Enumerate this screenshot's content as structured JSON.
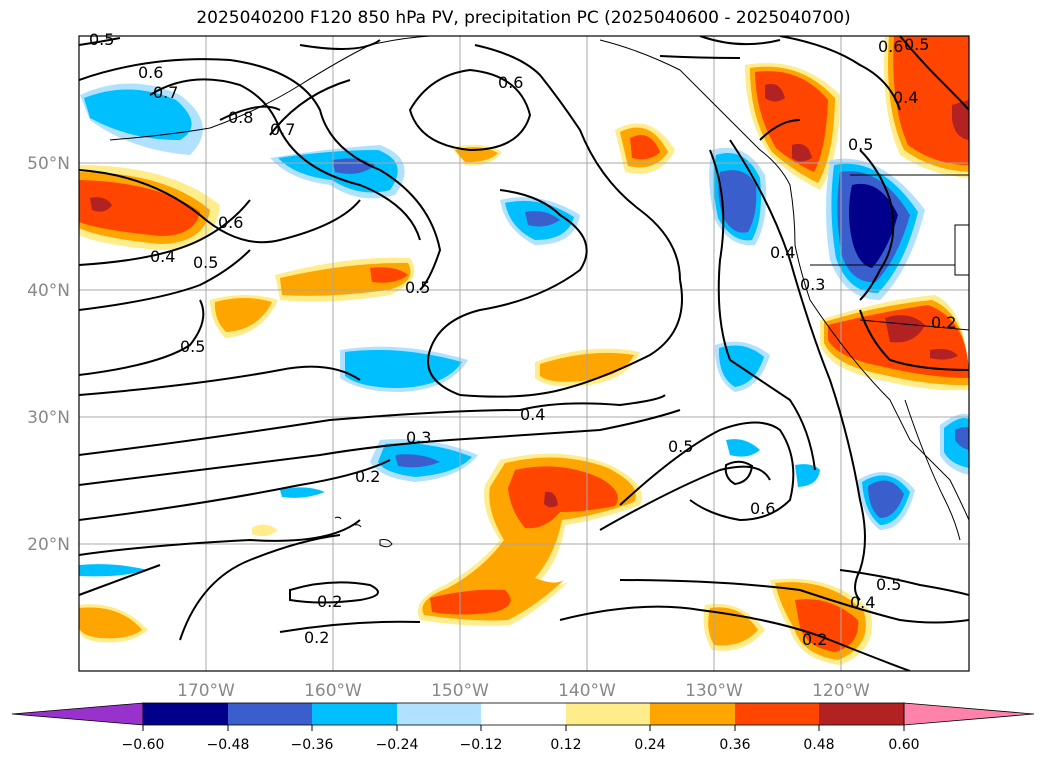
{
  "title": "2025040200 F120 850 hPa PV, precipitation PC (2025040600 - 2025040700)",
  "lat_labels": [
    "50°N",
    "40°N",
    "30°N",
    "20°N"
  ],
  "lon_labels": [
    "170°W",
    "160°W",
    "150°W",
    "140°W",
    "130°W",
    "120°W"
  ],
  "contour_labels": [
    "0.5",
    "0.6",
    "0.7",
    "0.8",
    "0.7",
    "0.6",
    "0.6",
    "0.5",
    "0.4",
    "0.6",
    "0.5",
    "0.4",
    "0.4",
    "0.3",
    "0.2",
    "0.5",
    "0.5",
    "0.5",
    "0.4",
    "0.3",
    "0.2",
    "0.5",
    "0.6",
    "0.2",
    "0.2",
    "0.5",
    "0.4",
    "0.2"
  ],
  "colorbar": {
    "ticks": [
      "−0.60",
      "−0.48",
      "−0.36",
      "−0.24",
      "−0.12",
      "0.12",
      "0.24",
      "0.36",
      "0.48",
      "0.60"
    ],
    "colors": [
      "#9932cc",
      "#00008b",
      "#3a5fcd",
      "#00bfff",
      "#b0e2ff",
      "#ffffff",
      "#ffec8b",
      "#ffa500",
      "#ff4500",
      "#b22222",
      "#ff82ab"
    ]
  }
}
